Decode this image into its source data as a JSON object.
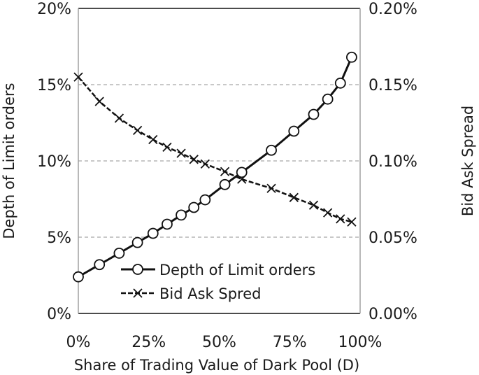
{
  "chart_data": {
    "type": "line",
    "xlabel": "Share of Trading Value of Dark Pool (D)",
    "ylabel_left": "Depth of Limit orders",
    "ylabel_right": "Bid Ask Spread",
    "xlim": [
      0,
      100
    ],
    "ylim_left": [
      0,
      20
    ],
    "ylim_right": [
      0,
      0.2
    ],
    "x_ticks": [
      "0%",
      "25%",
      "50%",
      "75%",
      "100%"
    ],
    "y_left_ticks": [
      "0%",
      "5%",
      "10%",
      "15%",
      "20%"
    ],
    "y_right_ticks": [
      "0.00%",
      "0.05%",
      "0.10%",
      "0.15%",
      "0.20%"
    ],
    "grid": "horizontal-dashed",
    "legend_position": "bottom-right",
    "series": [
      {
        "name": "Depth of Limit orders",
        "axis": "left",
        "line_style": "solid",
        "marker": "circle",
        "color": "#111111",
        "x": [
          0,
          7.5,
          14.5,
          21,
          26.5,
          31.5,
          36.5,
          41,
          45,
          52,
          58,
          68.5,
          76.5,
          83.5,
          88.5,
          93,
          97
        ],
        "values": [
          2.4,
          3.2,
          3.95,
          4.65,
          5.25,
          5.85,
          6.45,
          6.95,
          7.45,
          8.45,
          9.25,
          10.7,
          11.95,
          13.05,
          14.05,
          15.1,
          16.8
        ]
      },
      {
        "name": "Bid Ask Spred",
        "axis": "right",
        "line_style": "dashed",
        "marker": "x",
        "color": "#111111",
        "x": [
          0,
          7.5,
          14.5,
          21,
          26.5,
          31.5,
          36.5,
          41,
          45,
          52,
          58,
          68.5,
          76.5,
          83.5,
          88.5,
          93,
          97
        ],
        "values": [
          0.155,
          0.139,
          0.128,
          0.12,
          0.114,
          0.109,
          0.105,
          0.101,
          0.098,
          0.093,
          0.088,
          0.082,
          0.076,
          0.071,
          0.066,
          0.062,
          0.06
        ]
      }
    ]
  }
}
